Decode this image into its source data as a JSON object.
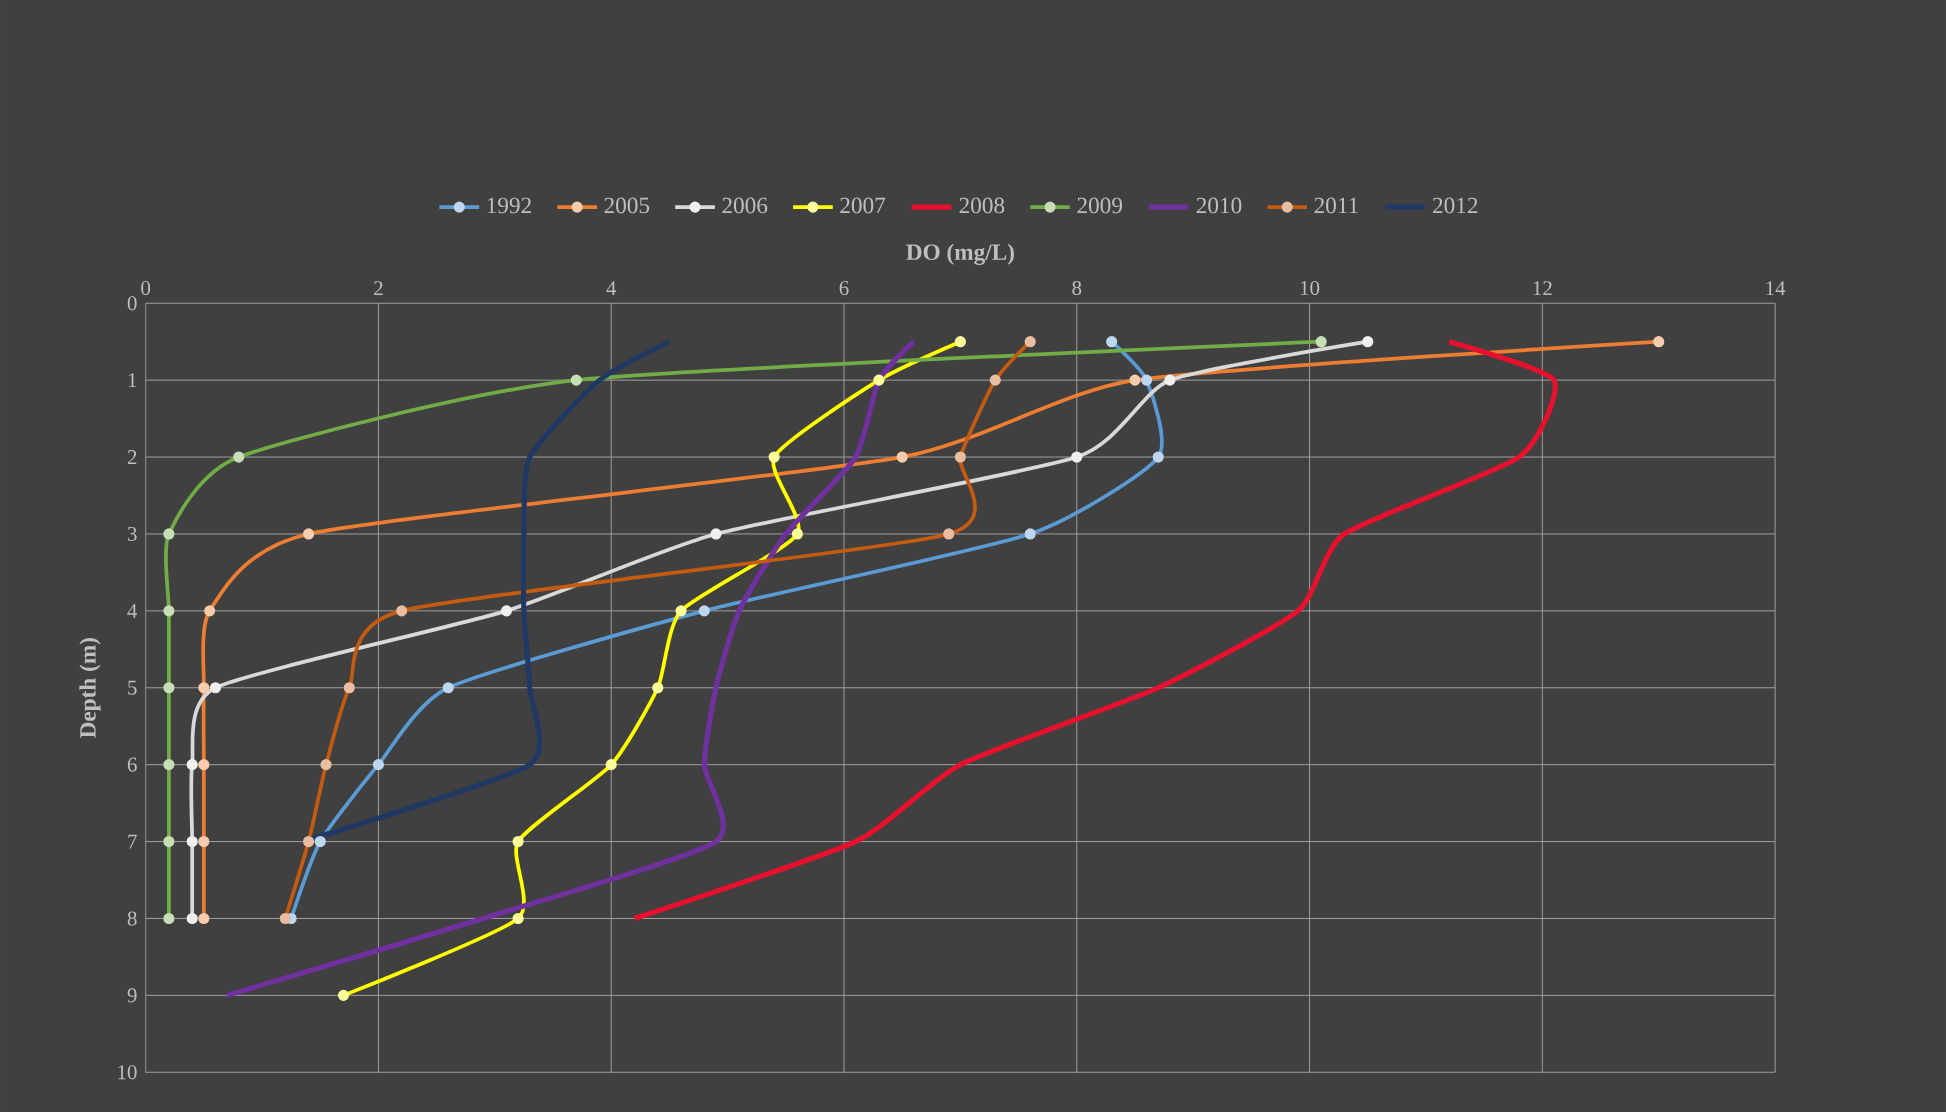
{
  "chart_data": {
    "type": "line",
    "xlabel": "DO (mg/L)",
    "ylabel": "Depth (m)",
    "xlim": [
      0,
      14
    ],
    "xticks": [
      0,
      2,
      4,
      6,
      8,
      10,
      12,
      14
    ],
    "ylim": [
      10,
      0
    ],
    "yticks": [
      0,
      1,
      2,
      3,
      4,
      5,
      6,
      7,
      8,
      9,
      10
    ],
    "grid": true,
    "legend": "top",
    "marker": "circle",
    "series": [
      {
        "name": "1992",
        "color": "#5b9bd5",
        "x": [
          8.3,
          8.6,
          8.7,
          7.6,
          4.8,
          2.6,
          2.0,
          1.5,
          1.25
        ],
        "values": [
          0.5,
          1,
          2,
          3,
          4,
          5,
          6,
          7,
          8
        ]
      },
      {
        "name": "2005",
        "color": "#ed7d31",
        "x": [
          13.0,
          8.5,
          6.5,
          1.4,
          0.55,
          0.5,
          0.5,
          0.5,
          0.5
        ],
        "values": [
          0.5,
          1,
          2,
          3,
          4,
          5,
          6,
          7,
          8
        ]
      },
      {
        "name": "2006",
        "color": "#d9d9d9",
        "x": [
          10.5,
          8.8,
          8.0,
          4.9,
          3.1,
          0.6,
          0.4,
          0.4,
          0.4
        ],
        "values": [
          0.5,
          1,
          2,
          3,
          4,
          5,
          6,
          7,
          8
        ]
      },
      {
        "name": "2007",
        "color": "#ffff00",
        "x": [
          7.0,
          6.3,
          5.4,
          5.6,
          4.6,
          4.4,
          4.0,
          3.2,
          3.2,
          1.7
        ],
        "values": [
          0.5,
          1,
          2,
          3,
          4,
          5,
          6,
          7,
          8,
          9
        ]
      },
      {
        "name": "2008",
        "color": "#e8112d",
        "marker": "none",
        "x": [
          11.2,
          12.1,
          11.8,
          10.3,
          9.9,
          8.7,
          7.0,
          6.1,
          4.2
        ],
        "values": [
          0.5,
          1,
          2,
          3,
          4,
          5,
          6,
          7,
          8
        ]
      },
      {
        "name": "2009",
        "color": "#70ad47",
        "x": [
          10.1,
          3.7,
          0.8,
          0.2,
          0.2,
          0.2,
          0.2,
          0.2,
          0.2
        ],
        "values": [
          0.5,
          1,
          2,
          3,
          4,
          5,
          6,
          7,
          8
        ]
      },
      {
        "name": "2010",
        "color": "#7030a0",
        "marker": "none",
        "x": [
          6.6,
          6.3,
          6.1,
          5.5,
          5.1,
          4.9,
          4.8,
          4.9,
          2.9,
          0.7
        ],
        "values": [
          0.5,
          1,
          2,
          3,
          4,
          5,
          6,
          7,
          8,
          9
        ]
      },
      {
        "name": "2011",
        "color": "#c55a11",
        "x": [
          7.6,
          7.3,
          7.0,
          6.9,
          2.2,
          1.75,
          1.55,
          1.4,
          1.2
        ],
        "values": [
          0.5,
          1,
          2,
          3,
          4,
          5,
          6,
          7,
          8
        ]
      },
      {
        "name": "2012",
        "color": "#203864",
        "marker": "none",
        "x": [
          4.5,
          3.9,
          3.3,
          3.25,
          3.25,
          3.3,
          3.3,
          1.35
        ],
        "values": [
          0.5,
          1,
          2,
          3,
          4,
          5,
          6,
          7
        ]
      }
    ]
  }
}
